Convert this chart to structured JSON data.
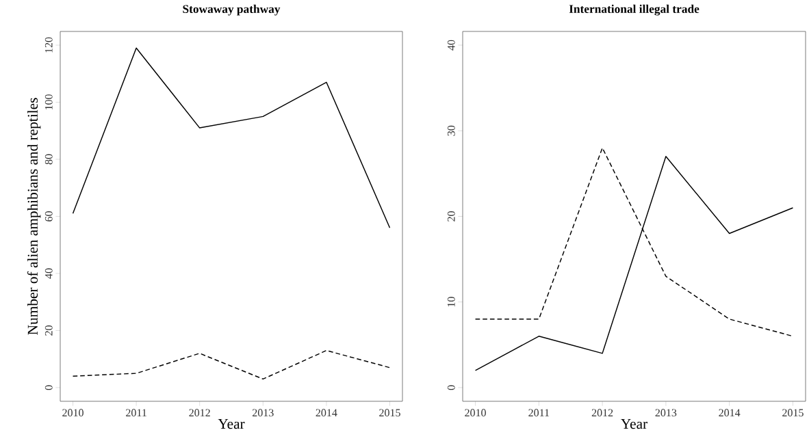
{
  "chart_data": [
    {
      "type": "line",
      "title": "Stowaway pathway",
      "xlabel": "Year",
      "ylabel": "Number of alien amphibians and reptiles",
      "x": [
        2010,
        2011,
        2012,
        2013,
        2014,
        2015
      ],
      "xlim": [
        2009.8,
        2015.2
      ],
      "xticks": [
        2010,
        2011,
        2012,
        2013,
        2014,
        2015
      ],
      "ylim": [
        -4.8,
        124.8
      ],
      "yticks": [
        0,
        20,
        40,
        60,
        80,
        100,
        120
      ],
      "series": [
        {
          "color": "#000000",
          "line_style": "solid",
          "values": [
            61,
            119,
            91,
            95,
            107,
            56
          ]
        },
        {
          "color": "#000000",
          "line_style": "dashed",
          "values": [
            4,
            5,
            12,
            3,
            13,
            7
          ]
        }
      ]
    },
    {
      "type": "line",
      "title": "International illegal trade",
      "xlabel": "Year",
      "x": [
        2010,
        2011,
        2012,
        2013,
        2014,
        2015
      ],
      "xlim": [
        2009.8,
        2015.2
      ],
      "xticks": [
        2010,
        2011,
        2012,
        2013,
        2014,
        2015
      ],
      "ylim": [
        -1.6,
        41.6
      ],
      "yticks": [
        0,
        10,
        20,
        30,
        40
      ],
      "series": [
        {
          "color": "#000000",
          "line_style": "solid",
          "values": [
            2,
            6,
            4,
            27,
            18,
            21
          ]
        },
        {
          "color": "#000000",
          "line_style": "dashed",
          "values": [
            8,
            8,
            28,
            13,
            8,
            6
          ]
        }
      ]
    }
  ]
}
